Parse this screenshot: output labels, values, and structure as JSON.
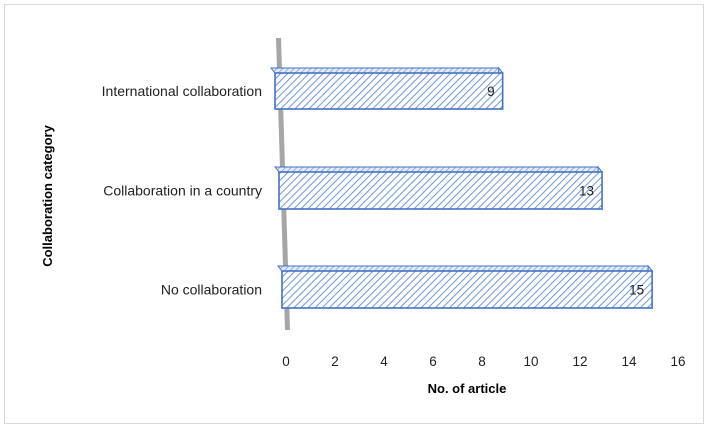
{
  "chart_data": {
    "type": "bar",
    "orientation": "horizontal",
    "style": "3d-clustered",
    "categories": [
      "International collaboration",
      "Collaboration in a country",
      "No collaboration"
    ],
    "values": [
      9,
      13,
      15
    ],
    "data_labels": [
      "9",
      "13",
      "15"
    ],
    "title": "",
    "xlabel": "No. of article",
    "ylabel": "Collaboration category",
    "xlim": [
      0,
      16
    ],
    "xticks": [
      "0",
      "2",
      "4",
      "6",
      "8",
      "10",
      "12",
      "14",
      "16"
    ],
    "grid": false,
    "legend": "none",
    "colors": {
      "bar_stroke": "#4472C4",
      "bar_hatch": "#5b8bd6",
      "bar_fill": "#dce6f5",
      "wall": "#a6a6a6"
    }
  }
}
